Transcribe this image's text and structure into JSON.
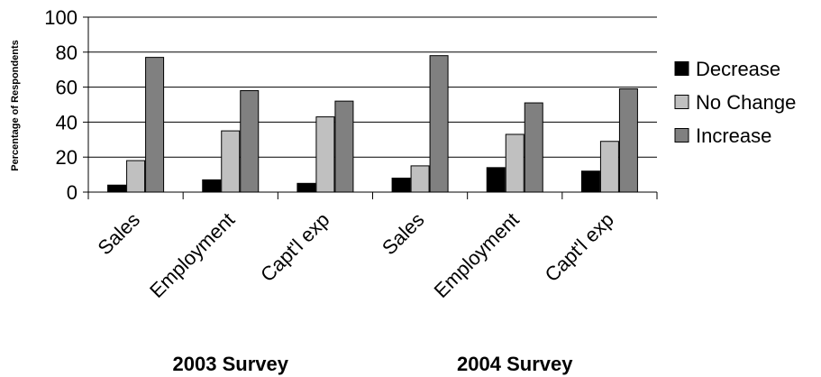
{
  "chart_data": {
    "type": "bar",
    "ylabel": "Percentage of Respondents",
    "ylim": [
      0,
      100
    ],
    "yticks": [
      0,
      20,
      40,
      60,
      80,
      100
    ],
    "grid": true,
    "legend_position": "right",
    "categories": [
      "Sales",
      "Employment",
      "Capt'l exp",
      "Sales",
      "Employment",
      "Capt'l exp"
    ],
    "groups": [
      {
        "label": "2003 Survey",
        "categories": [
          "Sales",
          "Employment",
          "Capt'l exp"
        ]
      },
      {
        "label": "2004 Survey",
        "categories": [
          "Sales",
          "Employment",
          "Capt'l exp"
        ]
      }
    ],
    "series": [
      {
        "name": "Decrease",
        "color": "#000000",
        "values": [
          4,
          7,
          5,
          8,
          14,
          12
        ]
      },
      {
        "name": "No Change",
        "color": "#c0c0c0",
        "values": [
          18,
          35,
          43,
          15,
          33,
          29
        ]
      },
      {
        "name": "Increase",
        "color": "#808080",
        "values": [
          77,
          58,
          52,
          78,
          51,
          59
        ]
      }
    ]
  }
}
